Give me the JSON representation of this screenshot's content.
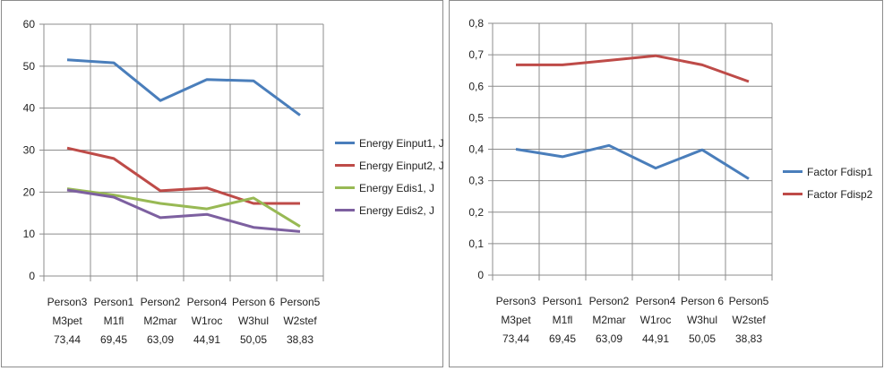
{
  "chart_data": [
    {
      "type": "line",
      "categories": [
        [
          "Person3",
          "M3pet",
          "73,44"
        ],
        [
          "Person1",
          "M1fl",
          "69,45"
        ],
        [
          "Person2",
          "M2mar",
          "63,09"
        ],
        [
          "Person4",
          "W1roc",
          "44,91"
        ],
        [
          "Person 6",
          "W3hul",
          "50,05"
        ],
        [
          "Person5",
          "W2stef",
          "38,83"
        ]
      ],
      "ylim": [
        0,
        60
      ],
      "y_ticks": [
        "0",
        "10",
        "20",
        "30",
        "40",
        "50",
        "60"
      ],
      "grid": "horizontal and vertical",
      "legend_position": "right",
      "series": [
        {
          "name": "Energy Einput1, J",
          "color": "#4a7ebb",
          "values": [
            51.5,
            50.8,
            41.8,
            46.8,
            46.5,
            38.3
          ]
        },
        {
          "name": "Energy Einput2, J",
          "color": "#be4b48",
          "values": [
            30.5,
            28.0,
            20.3,
            21.0,
            17.3,
            17.3
          ]
        },
        {
          "name": "Energy Edis1, J",
          "color": "#98b954",
          "values": [
            20.8,
            19.3,
            17.3,
            16.0,
            18.6,
            11.8
          ]
        },
        {
          "name": "Energy Edis2, J",
          "color": "#7d60a0",
          "values": [
            20.5,
            18.8,
            13.9,
            14.7,
            11.6,
            10.6
          ]
        }
      ]
    },
    {
      "type": "line",
      "categories": [
        [
          "Person3",
          "M3pet",
          "73,44"
        ],
        [
          "Person1",
          "M1fl",
          "69,45"
        ],
        [
          "Person2",
          "M2mar",
          "63,09"
        ],
        [
          "Person4",
          "W1roc",
          "44,91"
        ],
        [
          "Person 6",
          "W3hul",
          "50,05"
        ],
        [
          "Person5",
          "W2stef",
          "38,83"
        ]
      ],
      "ylim": [
        0,
        0.8
      ],
      "y_ticks": [
        "0",
        "0,1",
        "0,2",
        "0,3",
        "0,4",
        "0,5",
        "0,6",
        "0,7",
        "0,8"
      ],
      "grid": "horizontal and vertical",
      "legend_position": "right",
      "series": [
        {
          "name": "Factor Fdisp1",
          "color": "#4a7ebb",
          "values": [
            0.4,
            0.376,
            0.412,
            0.34,
            0.398,
            0.306
          ]
        },
        {
          "name": "Factor Fdisp2",
          "color": "#be4b48",
          "values": [
            0.668,
            0.668,
            0.682,
            0.697,
            0.668,
            0.615
          ]
        }
      ]
    }
  ]
}
